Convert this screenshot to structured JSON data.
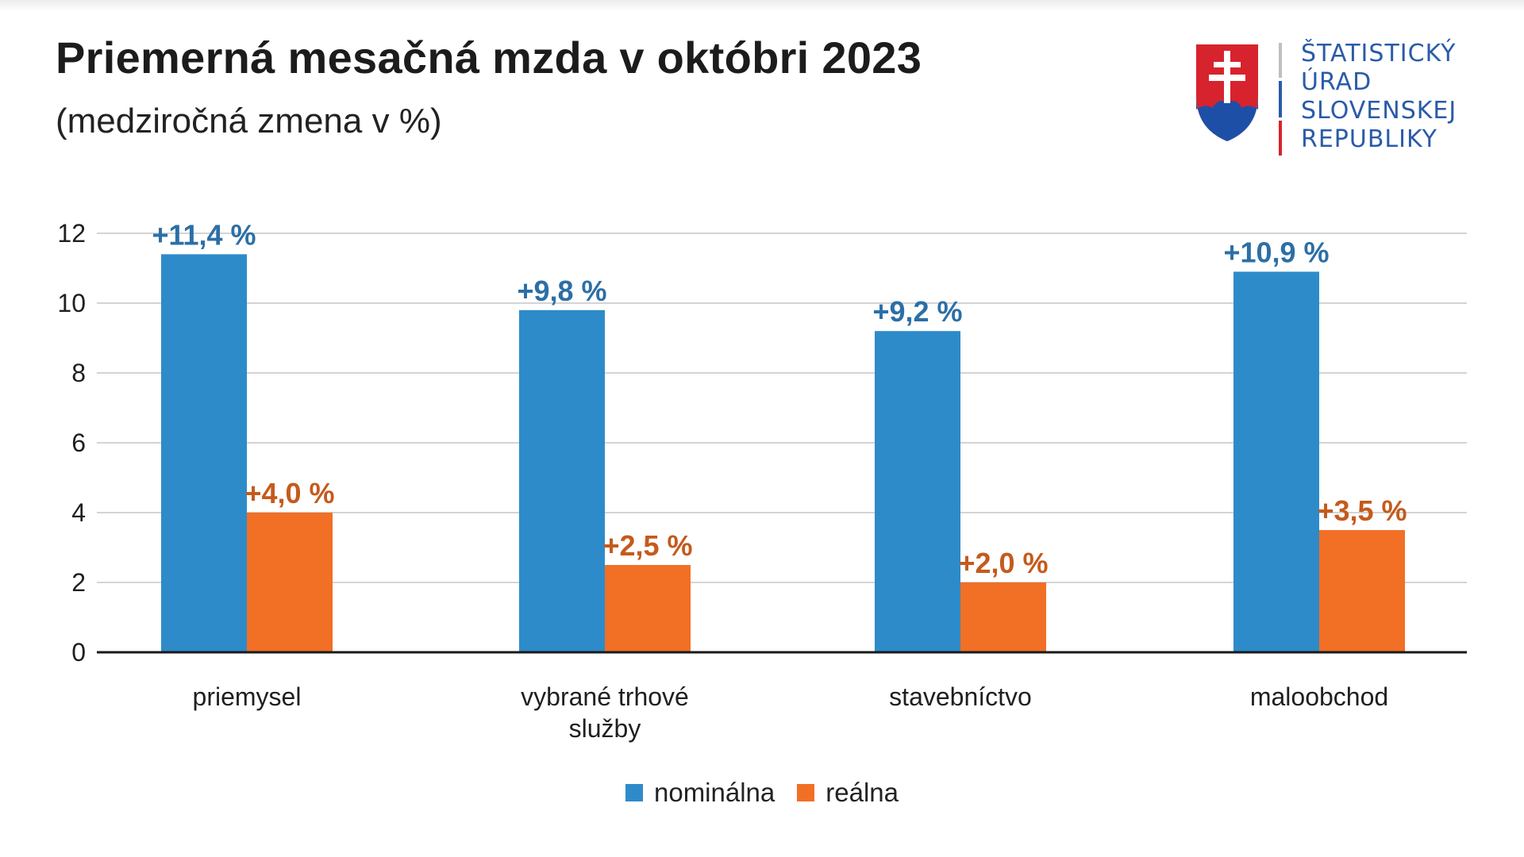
{
  "header": {
    "title": "Priemerná mesačná mzda v októbri 2023",
    "subtitle": "(medziročná zmena v %)"
  },
  "logo": {
    "lines": [
      "ŠTATISTICKÝ",
      "ÚRAD",
      "SLOVENSKEJ",
      "REPUBLIKY"
    ]
  },
  "colors": {
    "nominal": "#2e8bc9",
    "real": "#f26f26",
    "nominal_label": "#2c6fa6",
    "real_label": "#c55a1c"
  },
  "chart_data": {
    "type": "bar",
    "categories": [
      [
        "priemysel"
      ],
      [
        "vybrané trhové",
        "služby"
      ],
      [
        "stavebníctvo"
      ],
      [
        "maloobchod"
      ]
    ],
    "series": [
      {
        "name": "nominálna",
        "values": [
          11.4,
          9.8,
          9.2,
          10.9
        ],
        "labels": [
          "+11,4 %",
          "+9,8 %",
          "+9,2 %",
          "+10,9 %"
        ]
      },
      {
        "name": "reálna",
        "values": [
          4.0,
          2.5,
          2.0,
          3.5
        ],
        "labels": [
          "+4,0 %",
          "+2,5 %",
          "+2,0 %",
          "+3,5 %"
        ]
      }
    ],
    "ylim": [
      0,
      12
    ],
    "yticks": [
      "0",
      "2",
      "4",
      "6",
      "8",
      "10",
      "12"
    ],
    "grid": true,
    "legend": "bottom-center"
  }
}
